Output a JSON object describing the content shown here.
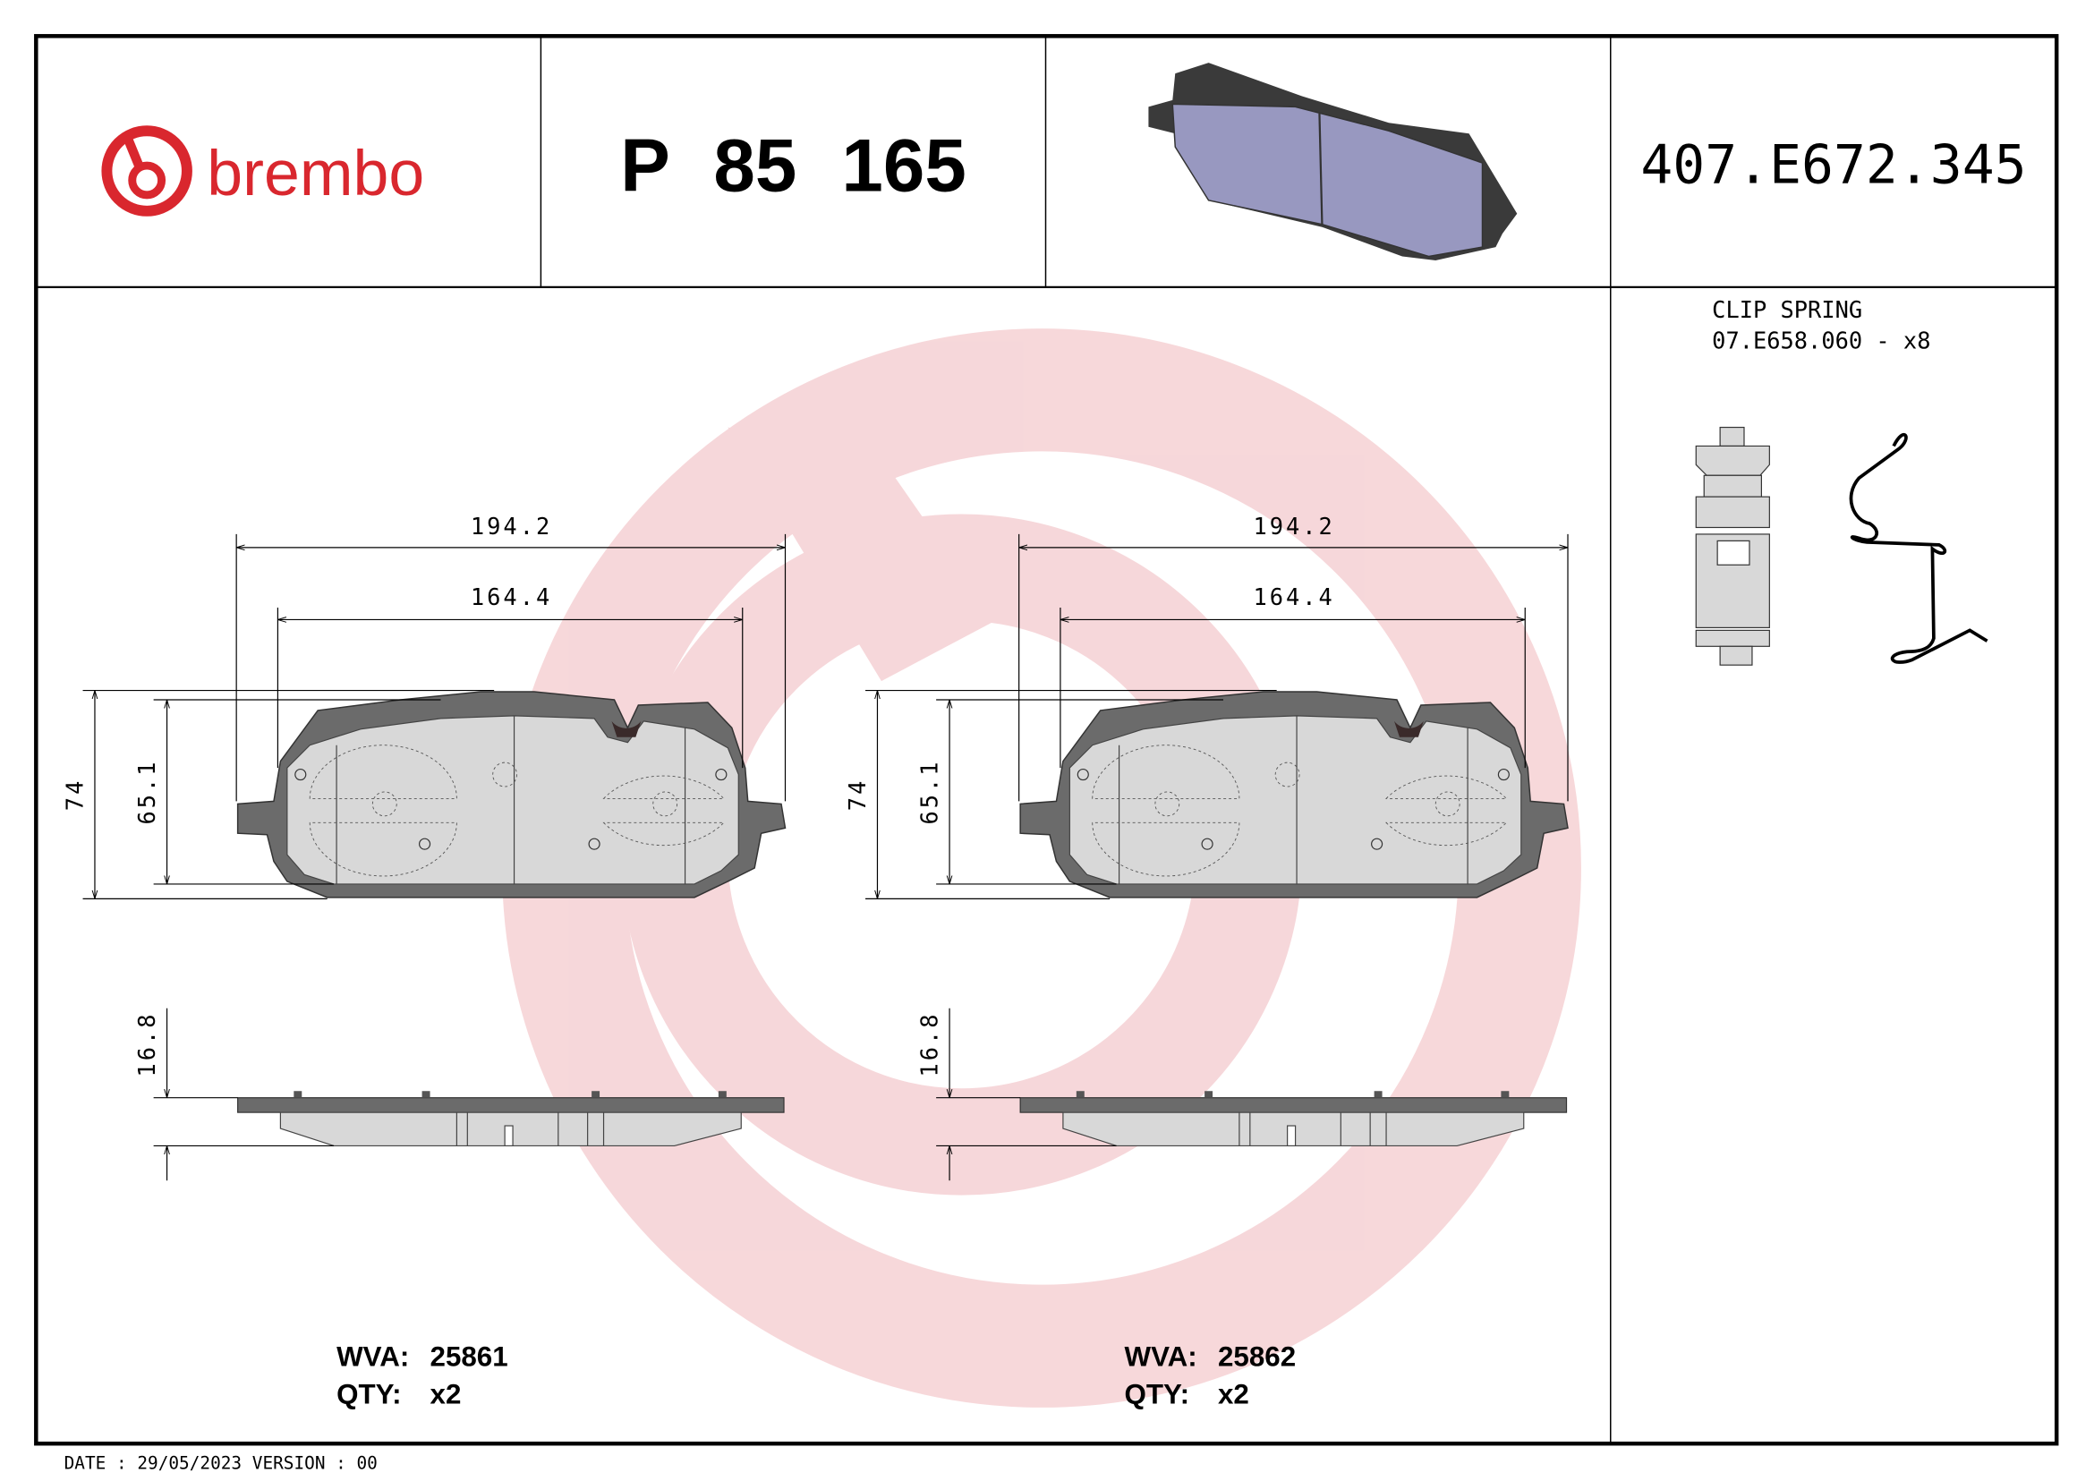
{
  "header": {
    "brand": "brembo",
    "part_number": "P 85 165",
    "reference": "407.E672.345"
  },
  "accessory": {
    "title": "CLIP SPRING",
    "code": "07.E658.060 - x8"
  },
  "pads": [
    {
      "width_overall": "194.2",
      "width_friction": "164.4",
      "height_overall": "74",
      "height_friction": "65.1",
      "thickness": "16.8",
      "wva_label": "WVA:",
      "wva": "25861",
      "qty_label": "QTY:",
      "qty": "x2"
    },
    {
      "width_overall": "194.2",
      "width_friction": "164.4",
      "height_overall": "74",
      "height_friction": "65.1",
      "thickness": "16.8",
      "wva_label": "WVA:",
      "wva": "25862",
      "qty_label": "QTY:",
      "qty": "x2"
    }
  ],
  "footer": {
    "date_version": "DATE : 29/05/2023 VERSION : 00"
  },
  "colors": {
    "brand_red": "#d9272e",
    "watermark": "#f6d7d9",
    "backplate": "#6b6b6b",
    "friction": "#d8d8d8",
    "pad_3d": "#9898c0"
  }
}
